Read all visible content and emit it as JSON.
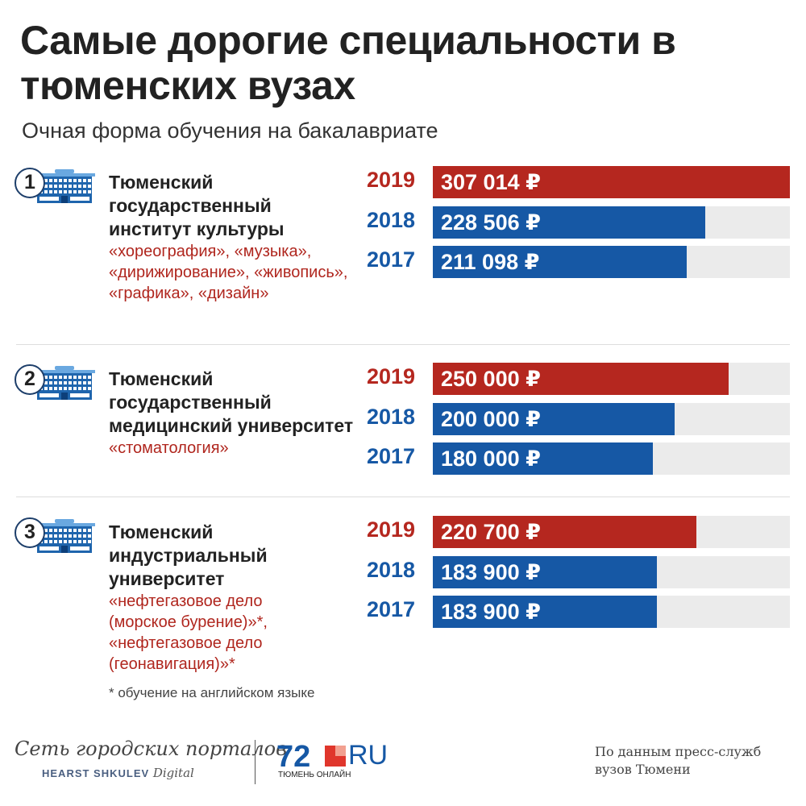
{
  "title": "Самые дорогие специальности в тюменских вузах",
  "subtitle": "Очная форма обучения на бакалавриате",
  "colors": {
    "2019": "#b5271f",
    "2018": "#1658a5",
    "2017": "#1658a5",
    "track": "#ebebeb",
    "specialty": "#b0261e"
  },
  "chart_data": {
    "type": "bar",
    "orientation": "horizontal",
    "currency": "₽",
    "groups": [
      {
        "rank": "1",
        "university": "Тюменский государственный институт культуры",
        "specialties": "«хореография», «музыка», «дирижирование», «живопись», «графика», «дизайн»",
        "icon": "building-icon",
        "bars": [
          {
            "year": "2019",
            "value": 307014,
            "label": "307 014 ₽"
          },
          {
            "year": "2018",
            "value": 228506,
            "label": "228 506 ₽"
          },
          {
            "year": "2017",
            "value": 211098,
            "label": "211 098 ₽"
          }
        ]
      },
      {
        "rank": "2",
        "university": "Тюменский государственный медицинский университет",
        "specialties": "«стоматология»",
        "icon": "building-icon",
        "bars": [
          {
            "year": "2019",
            "value": 250000,
            "label": "250 000 ₽"
          },
          {
            "year": "2018",
            "value": 200000,
            "label": "200 000 ₽"
          },
          {
            "year": "2017",
            "value": 180000,
            "label": "180 000 ₽"
          }
        ]
      },
      {
        "rank": "3",
        "university": "Тюменский индустриальный университет",
        "specialties": "«нефтегазовое дело (морское бурение)»*, «нефтегазовое дело (геонавигация)»*",
        "icon": "building-icon",
        "bars": [
          {
            "year": "2019",
            "value": 220700,
            "label": "220 700 ₽"
          },
          {
            "year": "2018",
            "value": 183900,
            "label": "183 900 ₽"
          },
          {
            "year": "2017",
            "value": 183900,
            "label": "183 900 ₽"
          }
        ]
      }
    ]
  },
  "note": "* обучение на английском языке",
  "footer": {
    "network": "Сеть городских порталов",
    "hearst": "HEARST SHKULEV",
    "digital": "Digital",
    "logo_num": "72",
    "logo_ru": "RU",
    "logo_city": "ТЮМЕНЬ ОНЛАЙН",
    "source": "По данным пресс-служб вузов Тюмени"
  }
}
